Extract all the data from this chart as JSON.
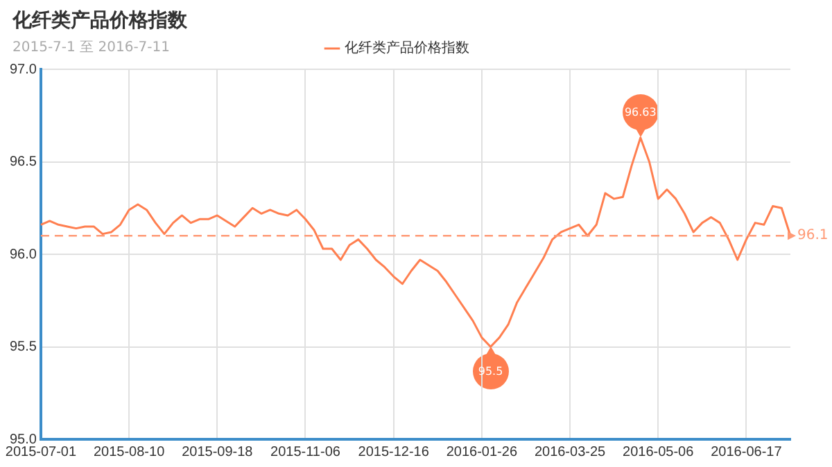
{
  "chart_data": {
    "type": "line",
    "title": "化纤类产品价格指数",
    "subtitle": "2015-7-1 至 2016-7-11",
    "categories": [
      "2015-07-01",
      null,
      null,
      null,
      null,
      null,
      null,
      null,
      null,
      null,
      "2015-08-10",
      null,
      null,
      null,
      null,
      null,
      null,
      null,
      null,
      null,
      "2015-09-18",
      null,
      null,
      null,
      null,
      null,
      null,
      null,
      null,
      null,
      "2015-11-06",
      null,
      null,
      null,
      null,
      null,
      null,
      null,
      null,
      null,
      "2015-12-16",
      null,
      null,
      null,
      null,
      null,
      null,
      null,
      null,
      null,
      "2016-01-26",
      null,
      null,
      null,
      null,
      null,
      null,
      null,
      null,
      null,
      "2016-03-25",
      null,
      null,
      null,
      null,
      null,
      null,
      null,
      null,
      null,
      "2016-05-06",
      null,
      null,
      null,
      null,
      null,
      null,
      null,
      null,
      null,
      "2016-06-17",
      null,
      null,
      null,
      null,
      null
    ],
    "series": [
      {
        "name": "化纤类产品价格指数",
        "color": "#ff7f50",
        "values": [
          96.16,
          96.18,
          96.16,
          96.15,
          96.14,
          96.15,
          96.15,
          96.11,
          96.12,
          96.16,
          96.24,
          96.27,
          96.24,
          96.17,
          96.11,
          96.17,
          96.21,
          96.17,
          96.19,
          96.19,
          96.21,
          96.18,
          96.15,
          96.2,
          96.25,
          96.22,
          96.24,
          96.22,
          96.21,
          96.24,
          96.19,
          96.13,
          96.03,
          96.03,
          95.97,
          96.05,
          96.08,
          96.03,
          95.97,
          95.93,
          95.88,
          95.84,
          95.91,
          95.97,
          95.94,
          95.91,
          95.85,
          95.78,
          95.71,
          95.64,
          95.55,
          95.5,
          95.55,
          95.62,
          95.74,
          95.82,
          95.9,
          95.98,
          96.08,
          96.12,
          96.14,
          96.16,
          96.1,
          96.16,
          96.33,
          96.3,
          96.31,
          96.48,
          96.63,
          96.5,
          96.3,
          96.35,
          96.3,
          96.22,
          96.12,
          96.17,
          96.2,
          96.17,
          96.08,
          95.97,
          96.08,
          96.17,
          96.16,
          96.26,
          96.25,
          96.1
        ],
        "value_labels": [
          null,
          null,
          null,
          null,
          null,
          null,
          null,
          null,
          null,
          null,
          null,
          null,
          null,
          null,
          null,
          null,
          null,
          null,
          null,
          null,
          null,
          null,
          null,
          null,
          null,
          null,
          null,
          null,
          null,
          null,
          null,
          null,
          null,
          null,
          null,
          null,
          null,
          null,
          null,
          null,
          null,
          null,
          null,
          null,
          null,
          null,
          null,
          null,
          null,
          null,
          null,
          "95.5",
          null,
          null,
          null,
          null,
          null,
          null,
          null,
          null,
          null,
          null,
          null,
          null,
          null,
          null,
          null,
          null,
          "96.63",
          null,
          null,
          null,
          null,
          null,
          null,
          null,
          null,
          null,
          null,
          null,
          null,
          null,
          null,
          null,
          null,
          null
        ]
      }
    ],
    "ylim": [
      95.0,
      97.0
    ],
    "yticks": [
      {
        "value": 95.0,
        "label": "95.0"
      },
      95.5,
      {
        "value": 96.0,
        "label": "96.0"
      },
      96.5,
      {
        "value": 97.0,
        "label": "97.0"
      }
    ],
    "grid": true,
    "legend": "top",
    "marker": "none",
    "line_style": "solid",
    "ref_lines": [
      {
        "axis": "y",
        "value": 96.1,
        "label": "96.1",
        "color": "#ff9a76",
        "line_style": "dashed"
      }
    ]
  }
}
